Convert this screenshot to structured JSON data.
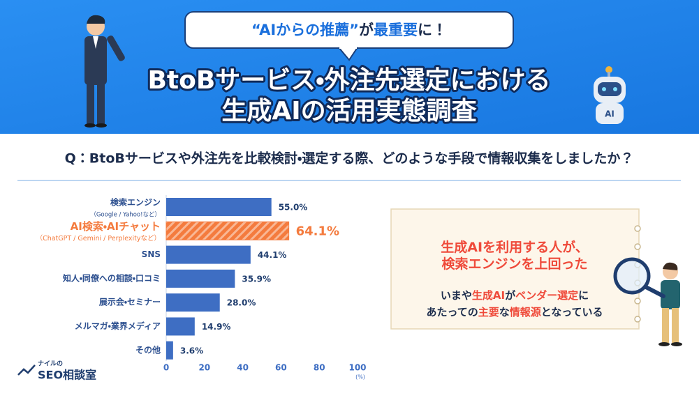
{
  "header": {
    "bubble": [
      {
        "text": "“AIからの推薦”",
        "em": true
      },
      {
        "text": "が",
        "em": false
      },
      {
        "text": "最重要",
        "em": true
      },
      {
        "text": "に！",
        "em": false
      }
    ],
    "title_lines": [
      "BtoBサービス・外注先選定における",
      "生成AIの活用実態調査"
    ]
  },
  "question": "Q：BtoBサービスや外注先を比較検討・選定する際、どのような手段で情報収集をしましたか？",
  "chart_data": {
    "type": "barh",
    "categories": [
      "検索エンジン",
      "AI検索・AIチャット",
      "SNS",
      "知人・同僚への相談・口コミ",
      "展示会・セミナー",
      "メルマガ・業界メディア",
      "その他"
    ],
    "category_notes": [
      "（Google / Yahoo!など）",
      "（ChatGPT / Gemini / Perplexityなど）",
      null,
      null,
      null,
      null,
      null
    ],
    "values": [
      55.0,
      64.1,
      44.1,
      35.9,
      28.0,
      14.9,
      3.6
    ],
    "value_labels": [
      "55.0%",
      "64.1%",
      "44.1%",
      "35.9%",
      "28.0%",
      "14.9%",
      "3.6%"
    ],
    "colors": [
      "#3e6ec3",
      "#f47b3e",
      "#3e6ec3",
      "#3e6ec3",
      "#3e6ec3",
      "#3e6ec3",
      "#3e6ec3"
    ],
    "highlight": 1,
    "xlabel": "(%)",
    "xlim": [
      0,
      100
    ],
    "xticks": [
      0,
      20,
      40,
      60,
      80,
      100
    ]
  },
  "callout": {
    "lines": [
      [
        {
          "text": "生成AI",
          "em": true
        },
        {
          "text": "を",
          "em": false
        },
        {
          "text": "利用する人",
          "em": true
        },
        {
          "text": "が、",
          "em": false
        }
      ],
      [
        {
          "text": "検索エンジン",
          "em": true
        },
        {
          "text": "を",
          "em": false
        },
        {
          "text": "上回った",
          "em": true
        }
      ],
      [
        {
          "text": "いまや",
          "em": false
        },
        {
          "text": "生成AI",
          "em": true
        },
        {
          "text": "が",
          "em": false
        },
        {
          "text": "ベンダー選定",
          "em": true
        },
        {
          "text": "に",
          "em": false
        }
      ],
      [
        {
          "text": "あたっての",
          "em": false
        },
        {
          "text": "主要",
          "em": true
        },
        {
          "text": "な",
          "em": false
        },
        {
          "text": "情報源",
          "em": true
        },
        {
          "text": "となっている",
          "em": false
        }
      ]
    ]
  },
  "logo": {
    "small": "ナイルの",
    "main": "SEO相談室"
  }
}
